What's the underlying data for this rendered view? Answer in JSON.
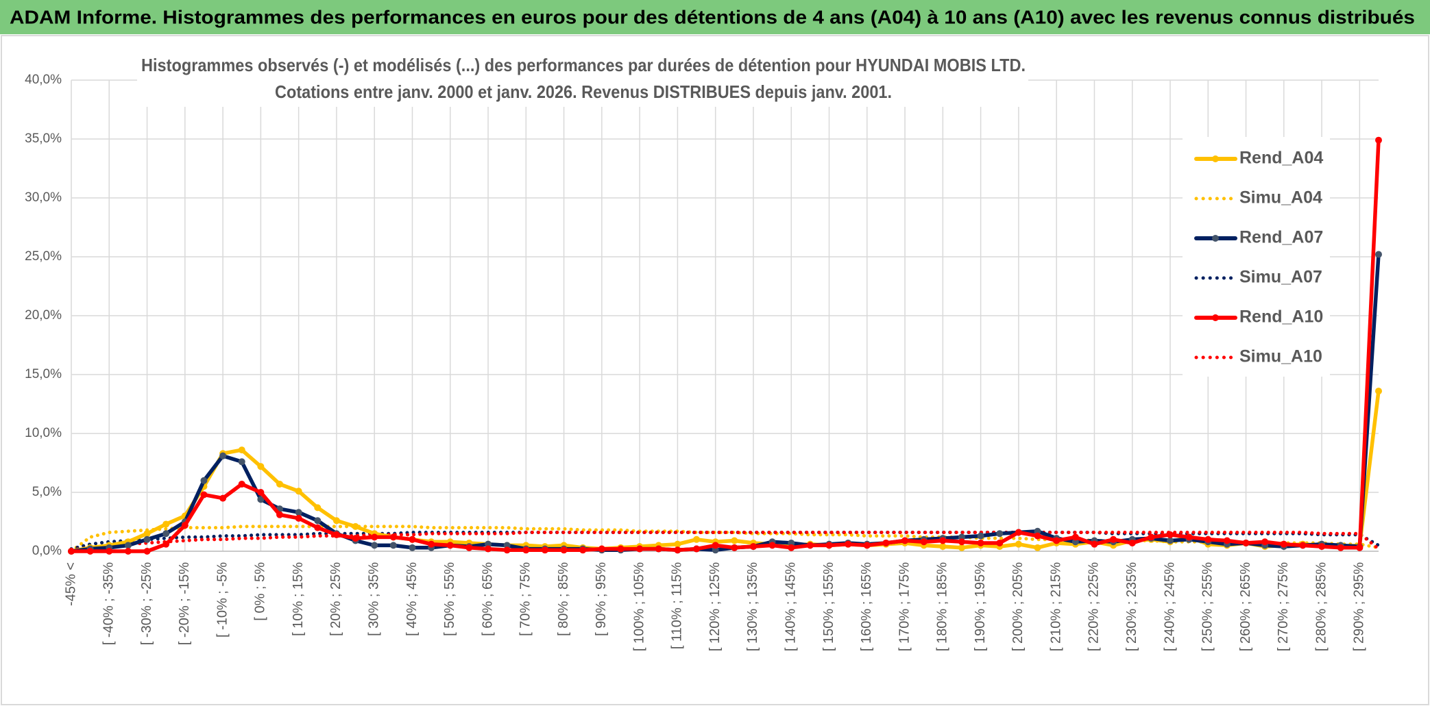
{
  "header": {
    "title": "ADAM Informe. Histogrammes des performances en euros pour des détentions de 4 ans (A04) à 10 ans (A10) avec les revenus connus distribués"
  },
  "chart_data": {
    "type": "line",
    "title": "Histogrammes observés (-) et modélisés (...) des performances par durées de détention pour HYUNDAI MOBIS LTD.",
    "subtitle": "Cotations entre janv. 2000 et janv. 2026.  Revenus DISTRIBUES depuis janv. 2001.",
    "categories": [
      "-45% <",
      null,
      "[ -40% ; -35%",
      null,
      "[ -30% ; -25%",
      null,
      "[ -20% ; -15%",
      null,
      "[ -10% ; -5%",
      null,
      "[ 0% ; 5%",
      null,
      "[ 10% ; 15%",
      null,
      "[ 20% ; 25%",
      null,
      "[ 30% ; 35%",
      null,
      "[ 40% ; 45%",
      null,
      "[ 50% ; 55%",
      null,
      "[ 60% ; 65%",
      null,
      "[ 70% ; 75%",
      null,
      "[ 80% ; 85%",
      null,
      "[ 90% ; 95%",
      null,
      "[ 100% ; 105%",
      null,
      "[ 110% ; 115%",
      null,
      "[ 120% ; 125%",
      null,
      "[ 130% ; 135%",
      null,
      "[ 140% ; 145%",
      null,
      "[ 150% ; 155%",
      null,
      "[ 160% ; 165%",
      null,
      "[ 170% ; 175%",
      null,
      "[ 180% ; 185%",
      null,
      "[ 190% ; 195%",
      null,
      "[ 200% ; 205%",
      null,
      "[ 210% ; 215%",
      null,
      "[ 220% ; 225%",
      null,
      "[ 230% ; 235%",
      null,
      "[ 240% ; 245%",
      null,
      "[ 250% ; 255%",
      null,
      "[ 260% ; 265%",
      null,
      "[ 270% ; 275%",
      null,
      "[ 280% ; 285%",
      null,
      "[ 290% ; 295%",
      null
    ],
    "series": [
      {
        "name": "Rend_A04",
        "color": "#FFC000",
        "line_style": "solid",
        "markers": true,
        "values": [
          0,
          0.3,
          0.5,
          0.8,
          1.5,
          2.3,
          3.0,
          5.5,
          8.3,
          8.6,
          7.2,
          5.7,
          5.1,
          3.7,
          2.6,
          2.1,
          1.5,
          1.2,
          1.0,
          0.8,
          0.8,
          0.7,
          0.6,
          0.5,
          0.5,
          0.4,
          0.5,
          0.3,
          0.2,
          0.3,
          0.4,
          0.5,
          0.6,
          1.0,
          0.8,
          0.9,
          0.7,
          0.6,
          0.5,
          0.6,
          0.5,
          0.6,
          0.5,
          0.6,
          0.7,
          0.5,
          0.4,
          0.3,
          0.5,
          0.4,
          0.6,
          0.3,
          0.7,
          0.6,
          0.8,
          0.5,
          0.9,
          1.0,
          0.8,
          1.2,
          0.6,
          0.5,
          0.7,
          0.4,
          0.5,
          0.6,
          0.5,
          0.4,
          0.5,
          13.6
        ]
      },
      {
        "name": "Simu_A04",
        "color": "#FFC000",
        "line_style": "dotted",
        "markers": false,
        "values": [
          0,
          1.2,
          1.6,
          1.7,
          1.8,
          1.9,
          2.0,
          2.0,
          2.0,
          2.1,
          2.1,
          2.1,
          2.1,
          2.1,
          2.1,
          2.1,
          2.1,
          2.1,
          2.1,
          2.0,
          2.0,
          2.0,
          2.0,
          2.0,
          1.9,
          1.9,
          1.9,
          1.8,
          1.8,
          1.8,
          1.7,
          1.7,
          1.7,
          1.6,
          1.6,
          1.6,
          1.5,
          1.5,
          1.5,
          1.4,
          1.4,
          1.4,
          1.3,
          1.3,
          1.3,
          1.2,
          1.2,
          1.2,
          1.1,
          1.1,
          1.1,
          1.0,
          1.0,
          1.0,
          0.9,
          0.9,
          0.9,
          0.9,
          0.8,
          0.8,
          0.8,
          0.8,
          0.7,
          0.7,
          0.7,
          0.7,
          0.7,
          0.6,
          0.6,
          0.3
        ]
      },
      {
        "name": "Rend_A07",
        "color": "#002060",
        "line_style": "solid",
        "markers": true,
        "marker_color": "#44546A",
        "values": [
          0,
          0.2,
          0.3,
          0.5,
          1.0,
          1.5,
          2.5,
          6.0,
          8.1,
          7.6,
          4.4,
          3.6,
          3.3,
          2.6,
          1.5,
          0.9,
          0.5,
          0.5,
          0.3,
          0.3,
          0.5,
          0.4,
          0.6,
          0.5,
          0.2,
          0.2,
          0.2,
          0.2,
          0.1,
          0.1,
          0.2,
          0.2,
          0.1,
          0.2,
          0.1,
          0.3,
          0.4,
          0.8,
          0.7,
          0.5,
          0.6,
          0.7,
          0.6,
          0.7,
          0.9,
          1.0,
          1.1,
          1.2,
          1.3,
          1.5,
          1.6,
          1.7,
          1.1,
          0.8,
          0.9,
          0.8,
          1.0,
          1.1,
          0.9,
          1.0,
          0.8,
          0.6,
          0.7,
          0.5,
          0.4,
          0.5,
          0.6,
          0.5,
          0.4,
          25.2
        ]
      },
      {
        "name": "Simu_A07",
        "color": "#002060",
        "line_style": "dotted",
        "markers": false,
        "values": [
          0.2,
          0.6,
          0.8,
          0.9,
          1.0,
          1.1,
          1.2,
          1.2,
          1.3,
          1.3,
          1.4,
          1.4,
          1.4,
          1.5,
          1.5,
          1.5,
          1.5,
          1.5,
          1.6,
          1.6,
          1.6,
          1.6,
          1.6,
          1.6,
          1.6,
          1.6,
          1.6,
          1.6,
          1.6,
          1.6,
          1.6,
          1.6,
          1.6,
          1.6,
          1.6,
          1.6,
          1.6,
          1.6,
          1.6,
          1.6,
          1.6,
          1.6,
          1.6,
          1.6,
          1.6,
          1.6,
          1.6,
          1.6,
          1.6,
          1.6,
          1.6,
          1.6,
          1.6,
          1.6,
          1.6,
          1.5,
          1.5,
          1.5,
          1.5,
          1.5,
          1.5,
          1.5,
          1.5,
          1.5,
          1.5,
          1.5,
          1.4,
          1.4,
          1.4,
          0.5
        ]
      },
      {
        "name": "Rend_A10",
        "color": "#FF0000",
        "line_style": "solid",
        "markers": true,
        "values": [
          0,
          0,
          0,
          0,
          0,
          0.6,
          2.2,
          4.8,
          4.5,
          5.7,
          5.0,
          3.1,
          2.8,
          2.0,
          1.4,
          1.1,
          1.2,
          1.2,
          1.0,
          0.6,
          0.5,
          0.3,
          0.2,
          0.1,
          0.1,
          0.1,
          0.1,
          0.1,
          0.2,
          0.2,
          0.2,
          0.2,
          0.1,
          0.2,
          0.5,
          0.3,
          0.4,
          0.5,
          0.3,
          0.5,
          0.5,
          0.6,
          0.5,
          0.7,
          0.9,
          0.8,
          0.9,
          0.8,
          0.7,
          0.7,
          1.6,
          1.3,
          0.9,
          1.2,
          0.6,
          1.0,
          0.7,
          1.2,
          1.4,
          1.2,
          1.0,
          0.9,
          0.7,
          0.8,
          0.6,
          0.5,
          0.4,
          0.3,
          0.3,
          34.9
        ]
      },
      {
        "name": "Simu_A10",
        "color": "#FF0000",
        "line_style": "dotted",
        "markers": false,
        "values": [
          0.1,
          0.3,
          0.5,
          0.6,
          0.7,
          0.8,
          0.9,
          1.0,
          1.0,
          1.1,
          1.1,
          1.2,
          1.2,
          1.3,
          1.3,
          1.3,
          1.4,
          1.4,
          1.4,
          1.5,
          1.5,
          1.5,
          1.5,
          1.5,
          1.6,
          1.6,
          1.6,
          1.6,
          1.6,
          1.6,
          1.6,
          1.6,
          1.6,
          1.6,
          1.6,
          1.6,
          1.6,
          1.6,
          1.6,
          1.6,
          1.6,
          1.6,
          1.6,
          1.6,
          1.6,
          1.6,
          1.6,
          1.6,
          1.6,
          1.6,
          1.6,
          1.6,
          1.6,
          1.6,
          1.6,
          1.6,
          1.6,
          1.6,
          1.6,
          1.6,
          1.6,
          1.6,
          1.6,
          1.6,
          1.6,
          1.6,
          1.5,
          1.5,
          1.5,
          0.2
        ]
      }
    ],
    "ylim": [
      0,
      40
    ],
    "yticks": [
      {
        "value": 0,
        "label": "0,0%"
      },
      {
        "value": 5,
        "label": "5,0%"
      },
      {
        "value": 10,
        "label": "10,0%"
      },
      {
        "value": 15,
        "label": "15,0%"
      },
      {
        "value": 20,
        "label": "20,0%"
      },
      {
        "value": 25,
        "label": "25,0%"
      },
      {
        "value": 30,
        "label": "30,0%"
      },
      {
        "value": 35,
        "label": "35,0%"
      },
      {
        "value": 40,
        "label": "40,0%"
      }
    ],
    "grid": true
  }
}
